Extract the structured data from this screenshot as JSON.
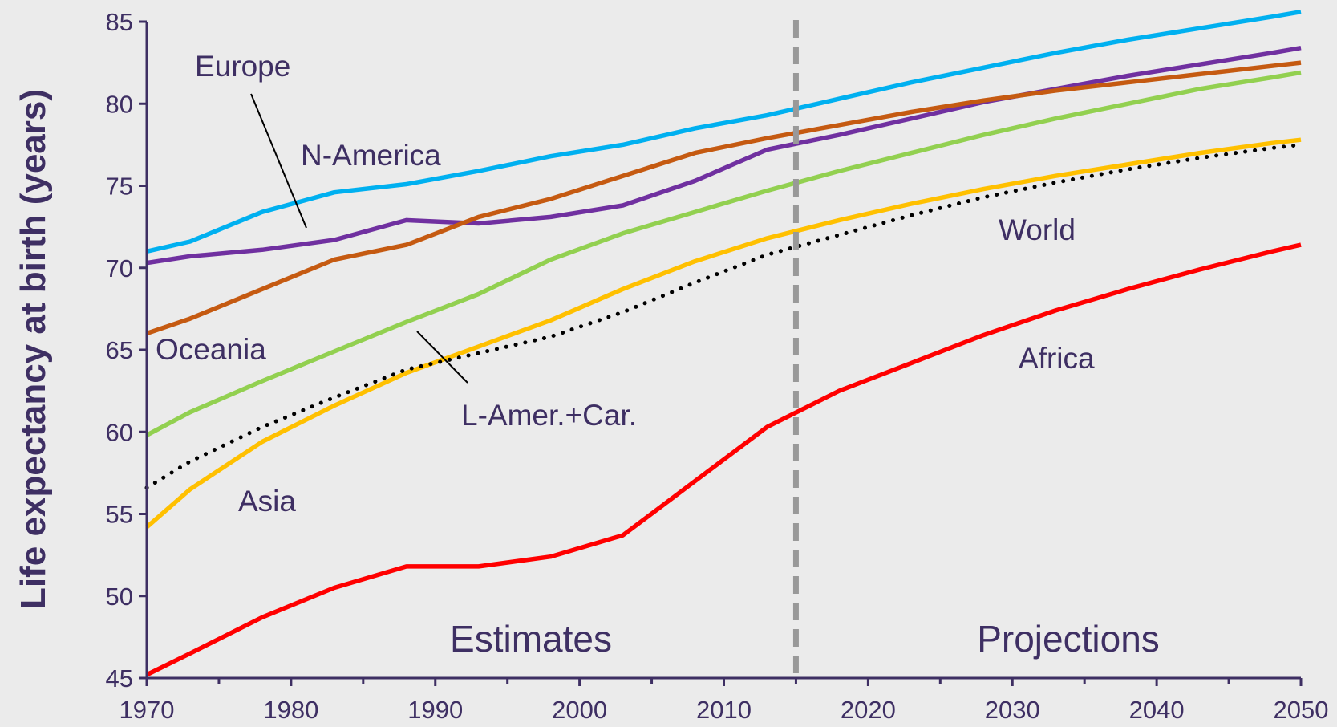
{
  "chart_data": {
    "type": "line",
    "ylabel": "Life expectancy at birth (years)",
    "xlabel": "",
    "xlim": [
      1970,
      2050
    ],
    "ylim": [
      45,
      85
    ],
    "x_ticks": [
      1970,
      1980,
      1990,
      2000,
      2010,
      2020,
      2030,
      2040,
      2050
    ],
    "y_ticks": [
      45,
      50,
      55,
      60,
      65,
      70,
      75,
      80,
      85
    ],
    "grid": false,
    "divider_year": 2015,
    "region_labels": {
      "left": "Estimates",
      "right": "Projections"
    },
    "series": [
      {
        "name": "N-America",
        "color": "#00b0f0",
        "style": "solid",
        "x": [
          1970,
          1973,
          1978,
          1983,
          1988,
          1993,
          1998,
          2003,
          2008,
          2013,
          2018,
          2023,
          2028,
          2033,
          2038,
          2043,
          2048,
          2050
        ],
        "y": [
          71.0,
          71.6,
          73.4,
          74.6,
          75.1,
          75.9,
          76.8,
          77.5,
          78.5,
          79.3,
          80.3,
          81.3,
          82.2,
          83.1,
          83.9,
          84.6,
          85.3,
          85.6
        ]
      },
      {
        "name": "Europe",
        "color": "#7030a0",
        "style": "solid",
        "x": [
          1970,
          1973,
          1978,
          1983,
          1988,
          1993,
          1998,
          2003,
          2008,
          2013,
          2018,
          2023,
          2028,
          2033,
          2038,
          2043,
          2048,
          2050
        ],
        "y": [
          70.3,
          70.7,
          71.1,
          71.7,
          72.9,
          72.7,
          73.1,
          73.8,
          75.3,
          77.2,
          78.1,
          79.1,
          80.1,
          80.9,
          81.7,
          82.4,
          83.1,
          83.4
        ]
      },
      {
        "name": "Oceania",
        "color": "#c55a11",
        "style": "solid",
        "x": [
          1970,
          1973,
          1978,
          1983,
          1988,
          1993,
          1998,
          2003,
          2008,
          2013,
          2018,
          2023,
          2028,
          2033,
          2038,
          2043,
          2048,
          2050
        ],
        "y": [
          66.0,
          66.9,
          68.7,
          70.5,
          71.4,
          73.1,
          74.2,
          75.6,
          77.0,
          77.9,
          78.7,
          79.5,
          80.2,
          80.8,
          81.3,
          81.8,
          82.3,
          82.5
        ]
      },
      {
        "name": "L-Amer.+Car.",
        "color": "#92d050",
        "style": "solid",
        "x": [
          1970,
          1973,
          1978,
          1983,
          1988,
          1993,
          1998,
          2003,
          2008,
          2013,
          2018,
          2023,
          2028,
          2033,
          2038,
          2043,
          2048,
          2050
        ],
        "y": [
          59.8,
          61.2,
          63.1,
          64.9,
          66.7,
          68.4,
          70.5,
          72.1,
          73.4,
          74.7,
          75.9,
          77.0,
          78.1,
          79.1,
          80.0,
          80.9,
          81.6,
          81.9
        ]
      },
      {
        "name": "Asia",
        "color": "#ffc000",
        "style": "solid",
        "x": [
          1970,
          1973,
          1978,
          1983,
          1988,
          1993,
          1998,
          2003,
          2008,
          2013,
          2018,
          2023,
          2028,
          2033,
          2038,
          2043,
          2048,
          2050
        ],
        "y": [
          54.2,
          56.5,
          59.4,
          61.6,
          63.6,
          65.2,
          66.8,
          68.7,
          70.4,
          71.8,
          72.9,
          73.9,
          74.8,
          75.6,
          76.3,
          77.0,
          77.6,
          77.8
        ]
      },
      {
        "name": "World",
        "color": "#000000",
        "style": "dotted",
        "x": [
          1970,
          1973,
          1978,
          1983,
          1988,
          1993,
          1998,
          2003,
          2008,
          2013,
          2018,
          2023,
          2028,
          2033,
          2038,
          2043,
          2048,
          2050
        ],
        "y": [
          56.6,
          58.2,
          60.3,
          62.1,
          63.8,
          64.8,
          65.8,
          67.3,
          69.1,
          70.8,
          72.0,
          73.2,
          74.3,
          75.2,
          76.0,
          76.7,
          77.3,
          77.5
        ]
      },
      {
        "name": "Africa",
        "color": "#ff0000",
        "style": "solid",
        "x": [
          1970,
          1973,
          1978,
          1983,
          1988,
          1993,
          1998,
          2003,
          2008,
          2013,
          2018,
          2023,
          2028,
          2033,
          2038,
          2043,
          2048,
          2050
        ],
        "y": [
          45.2,
          46.5,
          48.7,
          50.5,
          51.8,
          51.8,
          52.4,
          53.7,
          57.0,
          60.3,
          62.5,
          64.2,
          65.9,
          67.4,
          68.7,
          69.9,
          71.0,
          71.4
        ]
      }
    ]
  }
}
